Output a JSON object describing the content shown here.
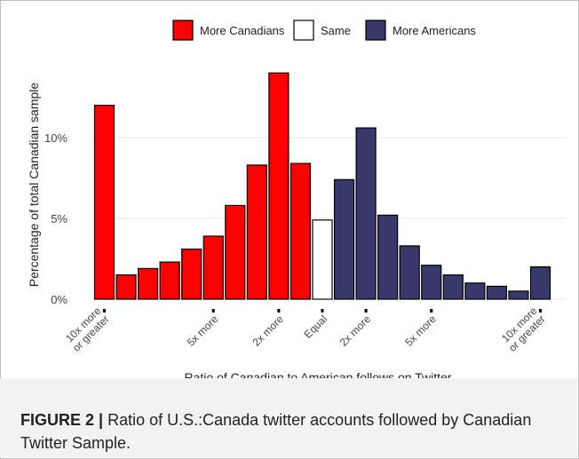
{
  "chart_data": {
    "type": "bar",
    "title": "",
    "xlabel": "Ratio of Canadian to American follows on Twitter",
    "ylabel": "Percentage of total Canadian sample",
    "ylim": [
      0,
      14.5
    ],
    "yticks": [
      0,
      5,
      10
    ],
    "ytick_labels": [
      "0%",
      "5%",
      "10%"
    ],
    "grid": "horizontal",
    "legend_position": "top",
    "legend": [
      {
        "name": "More Canadians",
        "color": "#ff0000"
      },
      {
        "name": "Same",
        "color": "#ffffff"
      },
      {
        "name": "More Americans",
        "color": "#38386b"
      }
    ],
    "bars": [
      {
        "value": 12.0,
        "group": "More Canadians"
      },
      {
        "value": 1.5,
        "group": "More Canadians"
      },
      {
        "value": 1.9,
        "group": "More Canadians"
      },
      {
        "value": 2.3,
        "group": "More Canadians"
      },
      {
        "value": 3.1,
        "group": "More Canadians"
      },
      {
        "value": 3.9,
        "group": "More Canadians"
      },
      {
        "value": 5.8,
        "group": "More Canadians"
      },
      {
        "value": 8.3,
        "group": "More Canadians"
      },
      {
        "value": 14.0,
        "group": "More Canadians"
      },
      {
        "value": 8.4,
        "group": "More Canadians"
      },
      {
        "value": 4.9,
        "group": "Same"
      },
      {
        "value": 7.4,
        "group": "More Americans"
      },
      {
        "value": 10.6,
        "group": "More Americans"
      },
      {
        "value": 5.2,
        "group": "More Americans"
      },
      {
        "value": 3.3,
        "group": "More Americans"
      },
      {
        "value": 2.1,
        "group": "More Americans"
      },
      {
        "value": 1.5,
        "group": "More Americans"
      },
      {
        "value": 1.0,
        "group": "More Americans"
      },
      {
        "value": 0.8,
        "group": "More Americans"
      },
      {
        "value": 0.5,
        "group": "More Americans"
      },
      {
        "value": 2.0,
        "group": "More Americans"
      }
    ],
    "xticks": [
      {
        "bar": 0,
        "lines": [
          "10x more",
          "or greater"
        ]
      },
      {
        "bar": 5,
        "lines": [
          "5x more"
        ]
      },
      {
        "bar": 8,
        "lines": [
          "2x more"
        ]
      },
      {
        "bar": 10,
        "lines": [
          "Equal"
        ]
      },
      {
        "bar": 12,
        "lines": [
          "2x more"
        ]
      },
      {
        "bar": 15,
        "lines": [
          "5x more"
        ]
      },
      {
        "bar": 20,
        "lines": [
          "10x more",
          "or greater"
        ]
      }
    ]
  },
  "caption": {
    "label": "FIGURE 2 |",
    "text": " Ratio of U.S.:Canada twitter accounts followed by Canadian Twitter Sample."
  }
}
